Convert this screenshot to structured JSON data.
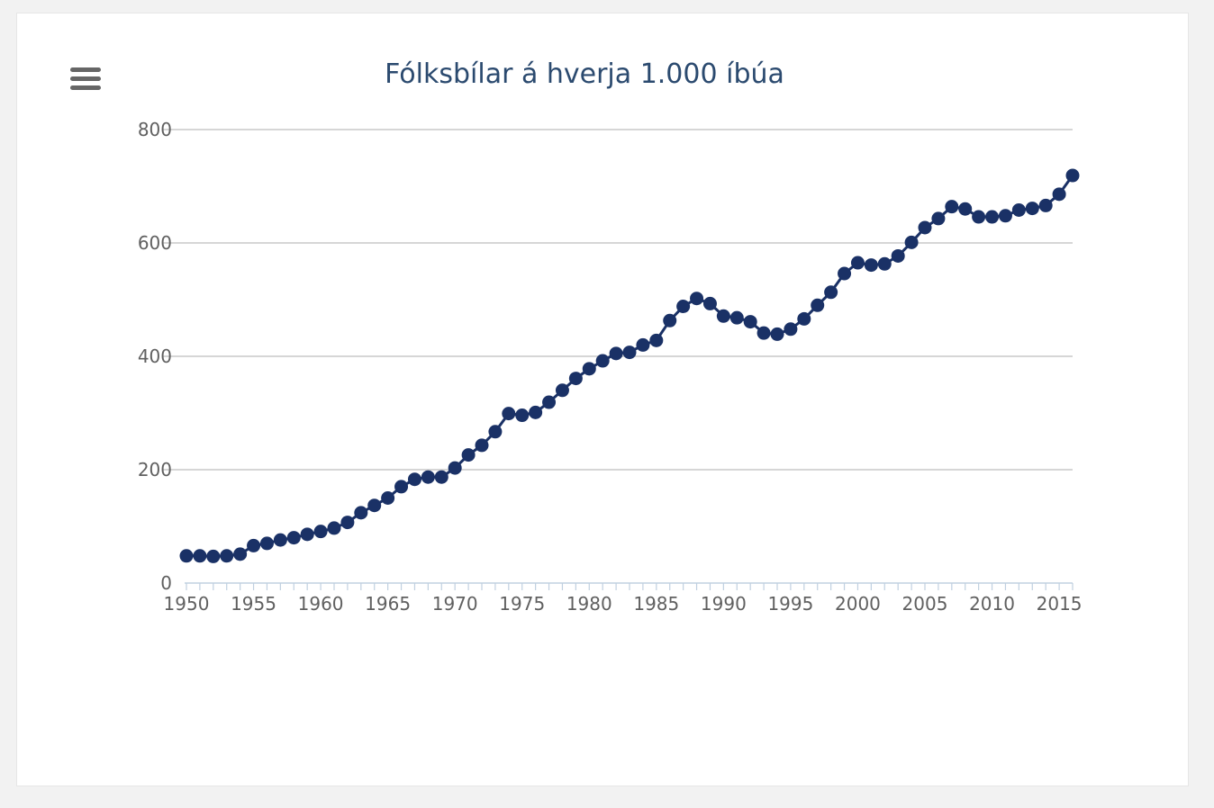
{
  "chart_data": {
    "type": "line",
    "title": "Fólksbílar á hverja 1.000 íbúa",
    "xlabel": "",
    "ylabel": "",
    "xlim": [
      1950,
      2016
    ],
    "ylim": [
      0,
      800
    ],
    "y_ticks": [
      0,
      200,
      400,
      600,
      800
    ],
    "x_ticks": [
      1950,
      1955,
      1960,
      1965,
      1970,
      1975,
      1980,
      1985,
      1990,
      1995,
      2000,
      2005,
      2010,
      2015
    ],
    "grid": "horizontal",
    "series": [
      {
        "name": "Fólksbílar á hverja 1.000 íbúa",
        "color": "#1a3166",
        "x": [
          1950,
          1951,
          1952,
          1953,
          1954,
          1955,
          1956,
          1957,
          1958,
          1959,
          1960,
          1961,
          1962,
          1963,
          1964,
          1965,
          1966,
          1967,
          1968,
          1969,
          1970,
          1971,
          1972,
          1973,
          1974,
          1975,
          1976,
          1977,
          1978,
          1979,
          1980,
          1981,
          1982,
          1983,
          1984,
          1985,
          1986,
          1987,
          1988,
          1989,
          1990,
          1991,
          1992,
          1993,
          1994,
          1995,
          1996,
          1997,
          1998,
          1999,
          2000,
          2001,
          2002,
          2003,
          2004,
          2005,
          2006,
          2007,
          2008,
          2009,
          2010,
          2011,
          2012,
          2013,
          2014,
          2015,
          2016
        ],
        "values": [
          48,
          48,
          47,
          48,
          51,
          66,
          70,
          76,
          80,
          86,
          91,
          97,
          107,
          124,
          137,
          150,
          170,
          183,
          187,
          187,
          203,
          226,
          243,
          267,
          299,
          296,
          301,
          319,
          340,
          361,
          378,
          392,
          405,
          407,
          420,
          428,
          463,
          488,
          502,
          493,
          471,
          468,
          461,
          441,
          439,
          448,
          466,
          490,
          513,
          546,
          565,
          561,
          563,
          577,
          601,
          627,
          643,
          664,
          660,
          646,
          646,
          648,
          658,
          661,
          666,
          686,
          719
        ]
      }
    ]
  }
}
